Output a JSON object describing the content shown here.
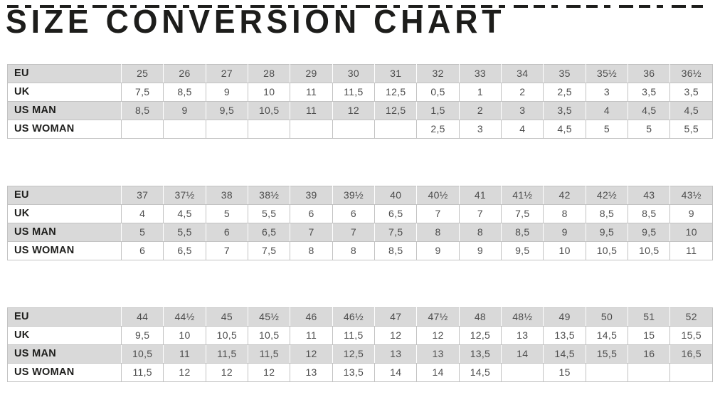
{
  "title": "SIZE CONVERSION CHART",
  "row_labels": [
    "EU",
    "UK",
    "US MAN",
    "US WOMAN"
  ],
  "tables": [
    {
      "rows": [
        {
          "label": "EU",
          "cells": [
            "25",
            "26",
            "27",
            "28",
            "29",
            "30",
            "31",
            "32",
            "33",
            "34",
            "35",
            "35½",
            "36",
            "36½"
          ]
        },
        {
          "label": "UK",
          "cells": [
            "7,5",
            "8,5",
            "9",
            "10",
            "11",
            "11,5",
            "12,5",
            "0,5",
            "1",
            "2",
            "2,5",
            "3",
            "3,5",
            "3,5"
          ]
        },
        {
          "label": "US MAN",
          "cells": [
            "8,5",
            "9",
            "9,5",
            "10,5",
            "11",
            "12",
            "12,5",
            "1,5",
            "2",
            "3",
            "3,5",
            "4",
            "4,5",
            "4,5"
          ]
        },
        {
          "label": "US WOMAN",
          "cells": [
            "",
            "",
            "",
            "",
            "",
            "",
            "",
            "2,5",
            "3",
            "4",
            "4,5",
            "5",
            "5",
            "5,5"
          ]
        }
      ]
    },
    {
      "rows": [
        {
          "label": "EU",
          "cells": [
            "37",
            "37½",
            "38",
            "38½",
            "39",
            "39½",
            "40",
            "40½",
            "41",
            "41½",
            "42",
            "42½",
            "43",
            "43½"
          ]
        },
        {
          "label": "UK",
          "cells": [
            "4",
            "4,5",
            "5",
            "5,5",
            "6",
            "6",
            "6,5",
            "7",
            "7",
            "7,5",
            "8",
            "8,5",
            "8,5",
            "9"
          ]
        },
        {
          "label": "US MAN",
          "cells": [
            "5",
            "5,5",
            "6",
            "6,5",
            "7",
            "7",
            "7,5",
            "8",
            "8",
            "8,5",
            "9",
            "9,5",
            "9,5",
            "10"
          ]
        },
        {
          "label": "US WOMAN",
          "cells": [
            "6",
            "6,5",
            "7",
            "7,5",
            "8",
            "8",
            "8,5",
            "9",
            "9",
            "9,5",
            "10",
            "10,5",
            "10,5",
            "11"
          ]
        }
      ]
    },
    {
      "rows": [
        {
          "label": "EU",
          "cells": [
            "44",
            "44½",
            "45",
            "45½",
            "46",
            "46½",
            "47",
            "47½",
            "48",
            "48½",
            "49",
            "50",
            "51",
            "52"
          ]
        },
        {
          "label": "UK",
          "cells": [
            "9,5",
            "10",
            "10,5",
            "10,5",
            "11",
            "11,5",
            "12",
            "12",
            "12,5",
            "13",
            "13,5",
            "14,5",
            "15",
            "15,5"
          ]
        },
        {
          "label": "US MAN",
          "cells": [
            "10,5",
            "11",
            "11,5",
            "11,5",
            "12",
            "12,5",
            "13",
            "13",
            "13,5",
            "14",
            "14,5",
            "15,5",
            "16",
            "16,5"
          ]
        },
        {
          "label": "US WOMAN",
          "cells": [
            "11,5",
            "12",
            "12",
            "12",
            "13",
            "13,5",
            "14",
            "14",
            "14,5",
            "",
            "15",
            "",
            "",
            ""
          ]
        }
      ]
    }
  ],
  "colors": {
    "stripe_gray": "#d9d9d9",
    "grid_line": "#c2c2c2",
    "label_text": "#1d1d1b",
    "value_text": "#4d4d4d",
    "background": "#ffffff"
  }
}
